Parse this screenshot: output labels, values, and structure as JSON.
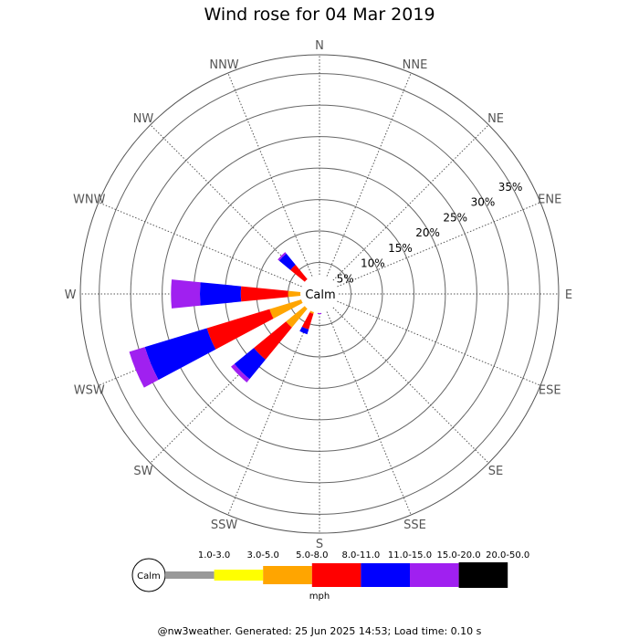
{
  "chart_data": {
    "type": "wind-rose",
    "title": "Wind rose for 04 Mar 2019",
    "directions": [
      "N",
      "NNE",
      "NE",
      "ENE",
      "E",
      "ESE",
      "SE",
      "SSE",
      "S",
      "SSW",
      "SW",
      "WSW",
      "W",
      "WNW",
      "NW",
      "NNW"
    ],
    "ring_labels": [
      "5%",
      "10%",
      "15%",
      "20%",
      "25%",
      "30%",
      "35%"
    ],
    "rings_percent": [
      5,
      10,
      15,
      20,
      25,
      30,
      35
    ],
    "rmax_percent": 38,
    "center_label": "Calm",
    "speed_bins": [
      "1.0-3.0",
      "3.0-5.0",
      "5.0-8.0",
      "8.0-11.0",
      "11.0-15.0",
      "15.0-20.0",
      "20.0-50.0"
    ],
    "bin_colors": [
      "#999999",
      "#ffff00",
      "#ffa500",
      "#ff0000",
      "#0000ff",
      "#a020f0",
      "#000000"
    ],
    "units": "mph",
    "grid": true,
    "series_cumulative_percent": {
      "NW": [
        0.2,
        1.0,
        2.5,
        6.0,
        8.3,
        8.6,
        8.6
      ],
      "NNW": [
        0.2,
        0.8,
        1.2,
        1.5,
        1.9,
        2.1,
        2.1
      ],
      "W": [
        0.3,
        1.5,
        5.0,
        12.5,
        19.0,
        23.6,
        23.6
      ],
      "WSW": [
        0.3,
        2.0,
        8.3,
        18.7,
        29.0,
        31.6,
        31.6
      ],
      "SW": [
        0.3,
        2.6,
        6.9,
        13.5,
        17.5,
        18.2,
        18.2
      ],
      "SSW": [
        0.3,
        1.4,
        3.3,
        5.9,
        6.7,
        6.7,
        6.7
      ],
      "S": [
        0.3,
        0.8,
        1.2,
        2.5,
        3.0,
        3.2,
        3.2
      ]
    }
  },
  "legend": {
    "calm_label": "Calm",
    "units_label": "mph"
  },
  "footer": {
    "text": "@nw3weather. Generated: 25 Jun 2025 14:53; Load time: 0.10 s"
  }
}
